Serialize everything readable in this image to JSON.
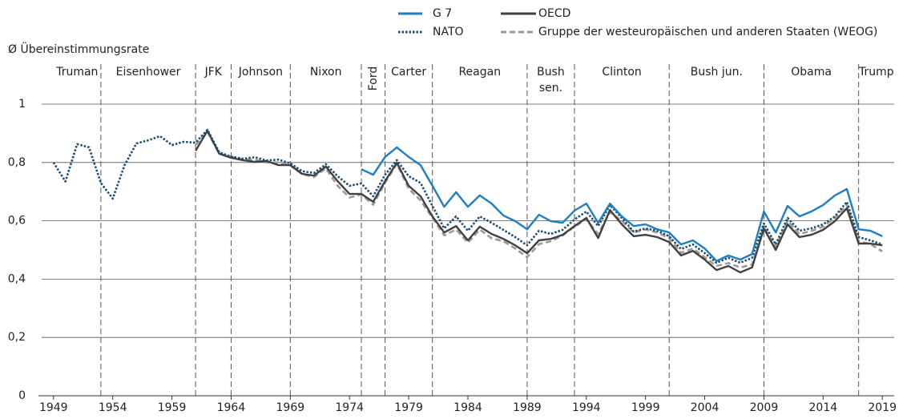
{
  "chart_data": {
    "type": "line",
    "y_label": "Ø Übereinstimmungsrate",
    "xlim": [
      1948,
      2020
    ],
    "xticks": [
      1949,
      1954,
      1959,
      1964,
      1969,
      1974,
      1979,
      1984,
      1989,
      1994,
      1999,
      2004,
      2009,
      2014,
      2019
    ],
    "ylim": [
      0,
      1
    ],
    "yticks": [
      0,
      {
        "value": 0.2,
        "label": "0,2"
      },
      {
        "value": 0.4,
        "label": "0,4"
      },
      {
        "value": 0.6,
        "label": "0,6"
      },
      {
        "value": 0.8,
        "label": "0,8"
      },
      1
    ],
    "grid": true,
    "legend": "top-right",
    "periods": [
      {
        "label": "Truman",
        "start": 1949,
        "end": 1953
      },
      {
        "label": "Eisenhower",
        "start": 1953,
        "end": 1961
      },
      {
        "label": "JFK",
        "start": 1961,
        "end": 1964
      },
      {
        "label": "Johnson",
        "start": 1964,
        "end": 1969
      },
      {
        "label": "Nixon",
        "start": 1969,
        "end": 1975
      },
      {
        "label": "Ford",
        "start": 1975,
        "end": 1977,
        "rotated": true
      },
      {
        "label": "Carter",
        "start": 1977,
        "end": 1981
      },
      {
        "label": "Reagan",
        "start": 1981,
        "end": 1989
      },
      {
        "label": [
          "Bush",
          "sen."
        ],
        "start": 1989,
        "end": 1993
      },
      {
        "label": "Clinton",
        "start": 1993,
        "end": 2001
      },
      {
        "label": "Bush jun.",
        "start": 2001,
        "end": 2009
      },
      {
        "label": "Obama",
        "start": 2009,
        "end": 2017
      },
      {
        "label": "Trump",
        "start": 2017,
        "end": 2020
      }
    ],
    "x": [
      1949,
      1950,
      1951,
      1952,
      1953,
      1954,
      1955,
      1956,
      1957,
      1958,
      1959,
      1960,
      1961,
      1962,
      1963,
      1964,
      1965,
      1966,
      1967,
      1968,
      1969,
      1970,
      1971,
      1972,
      1973,
      1974,
      1975,
      1976,
      1977,
      1978,
      1979,
      1980,
      1981,
      1982,
      1983,
      1984,
      1985,
      1986,
      1987,
      1988,
      1989,
      1990,
      1991,
      1992,
      1993,
      1994,
      1995,
      1996,
      1997,
      1998,
      1999,
      2000,
      2001,
      2002,
      2003,
      2004,
      2005,
      2006,
      2007,
      2008,
      2009,
      2010,
      2011,
      2012,
      2013,
      2014,
      2015,
      2016,
      2017,
      2018,
      2019
    ],
    "series": [
      {
        "name": "G 7",
        "color": "#1f7ec1",
        "style": "solid",
        "values": [
          null,
          null,
          null,
          null,
          null,
          null,
          null,
          null,
          null,
          null,
          null,
          null,
          null,
          null,
          null,
          null,
          null,
          null,
          null,
          null,
          null,
          null,
          null,
          null,
          null,
          null,
          0.777,
          0.758,
          0.819,
          0.852,
          0.819,
          0.791,
          0.72,
          0.648,
          0.698,
          0.648,
          0.687,
          0.659,
          0.618,
          0.599,
          0.571,
          0.621,
          0.599,
          0.593,
          0.635,
          0.659,
          0.593,
          0.659,
          0.615,
          0.582,
          0.588,
          0.571,
          0.56,
          0.519,
          0.533,
          0.505,
          0.462,
          0.481,
          0.467,
          0.486,
          0.632,
          0.56,
          0.651,
          0.615,
          0.632,
          0.654,
          0.687,
          0.709,
          0.571,
          0.566,
          0.547
        ]
      },
      {
        "name": "NATO",
        "color": "#1b4f72",
        "style": "dotted",
        "values": [
          0.8,
          0.735,
          0.863,
          0.852,
          0.73,
          0.676,
          0.79,
          0.865,
          0.876,
          0.89,
          0.86,
          0.871,
          0.868,
          0.912,
          0.835,
          0.82,
          0.813,
          0.818,
          0.807,
          0.81,
          0.797,
          0.77,
          0.764,
          0.794,
          0.753,
          0.72,
          0.728,
          0.684,
          0.758,
          0.808,
          0.753,
          0.73,
          0.651,
          0.574,
          0.615,
          0.566,
          0.615,
          0.593,
          0.569,
          0.544,
          0.516,
          0.566,
          0.555,
          0.569,
          0.604,
          0.632,
          0.582,
          0.654,
          0.61,
          0.563,
          0.574,
          0.566,
          0.547,
          0.503,
          0.519,
          0.489,
          0.456,
          0.473,
          0.456,
          0.473,
          0.591,
          0.519,
          0.61,
          0.566,
          0.574,
          0.588,
          0.615,
          0.665,
          0.544,
          0.533,
          0.519
        ]
      },
      {
        "name": "OECD",
        "color": "#404040",
        "style": "solid",
        "values": [
          null,
          null,
          null,
          null,
          null,
          null,
          null,
          null,
          null,
          null,
          null,
          null,
          0.84,
          0.909,
          0.83,
          0.816,
          0.808,
          0.802,
          0.805,
          0.791,
          0.791,
          0.761,
          0.755,
          0.786,
          0.736,
          0.692,
          0.692,
          0.665,
          0.736,
          0.799,
          0.72,
          0.684,
          0.615,
          0.56,
          0.582,
          0.533,
          0.58,
          0.555,
          0.538,
          0.516,
          0.489,
          0.533,
          0.538,
          0.552,
          0.582,
          0.61,
          0.541,
          0.637,
          0.588,
          0.547,
          0.552,
          0.544,
          0.527,
          0.481,
          0.497,
          0.467,
          0.431,
          0.445,
          0.423,
          0.44,
          0.574,
          0.5,
          0.588,
          0.544,
          0.552,
          0.569,
          0.599,
          0.643,
          0.522,
          0.522,
          0.516
        ]
      },
      {
        "name": "Gruppe der westeuropäischen und anderen Staaten (WEOG)",
        "color": "#9a9a9a",
        "style": "dashed",
        "values": [
          null,
          null,
          null,
          null,
          null,
          null,
          null,
          null,
          null,
          null,
          null,
          null,
          0.86,
          0.905,
          0.83,
          0.82,
          0.81,
          0.81,
          0.8,
          0.8,
          0.79,
          0.76,
          0.75,
          0.78,
          0.72,
          0.68,
          0.69,
          0.655,
          0.73,
          0.795,
          0.71,
          0.67,
          0.61,
          0.55,
          0.57,
          0.525,
          0.57,
          0.54,
          0.53,
          0.505,
          0.475,
          0.52,
          0.53,
          0.55,
          0.58,
          0.605,
          0.555,
          0.63,
          0.6,
          0.56,
          0.57,
          0.56,
          0.54,
          0.49,
          0.505,
          0.475,
          0.445,
          0.455,
          0.44,
          0.45,
          0.58,
          0.51,
          0.6,
          0.555,
          0.565,
          0.58,
          0.61,
          0.655,
          0.53,
          0.52,
          0.495
        ]
      }
    ]
  }
}
